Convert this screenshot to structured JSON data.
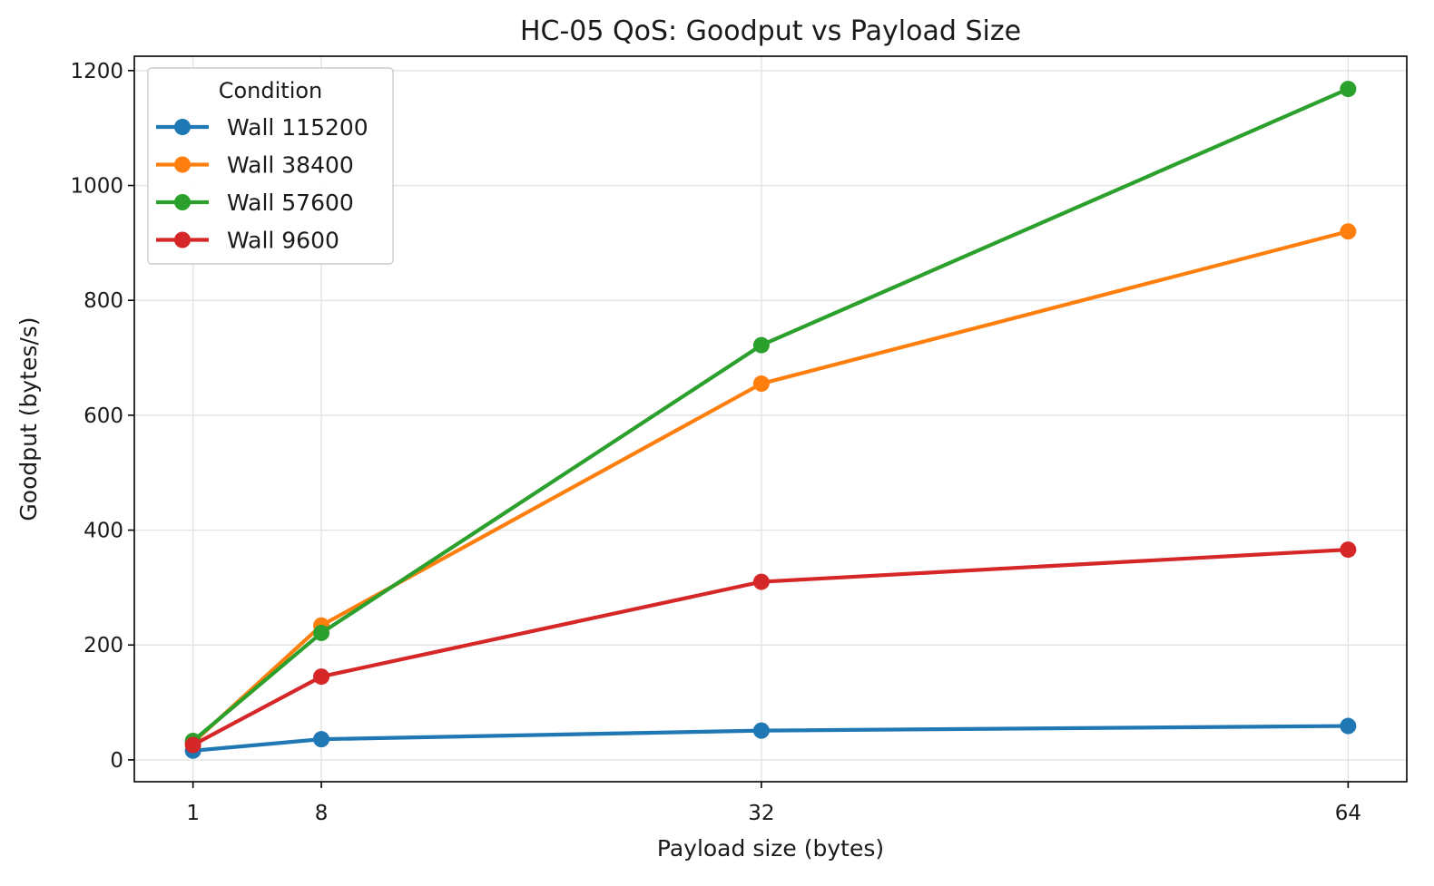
{
  "chart_data": {
    "type": "line",
    "title": "HC-05 QoS: Goodput vs Payload Size",
    "xlabel": "Payload size (bytes)",
    "ylabel": "Goodput (bytes/s)",
    "x": [
      1,
      8,
      32,
      64
    ],
    "x_ticks": [
      "1",
      "8",
      "32",
      "64"
    ],
    "xlim": [
      -2.2,
      67.2
    ],
    "ylim": [
      -38,
      1225
    ],
    "y_ticks": [
      0,
      200,
      400,
      600,
      800,
      1000,
      1200
    ],
    "grid": true,
    "legend": {
      "title": "Condition",
      "placement": "top-left"
    },
    "series": [
      {
        "name": "Wall 115200",
        "color": "#1f77b4",
        "values": [
          16,
          36,
          51,
          59
        ]
      },
      {
        "name": "Wall 38400",
        "color": "#ff7f0e",
        "values": [
          30,
          234,
          655,
          920
        ]
      },
      {
        "name": "Wall 57600",
        "color": "#2ca02c",
        "values": [
          33,
          221,
          722,
          1168
        ]
      },
      {
        "name": "Wall 9600",
        "color": "#d62728",
        "values": [
          26,
          145,
          310,
          366
        ]
      }
    ]
  }
}
